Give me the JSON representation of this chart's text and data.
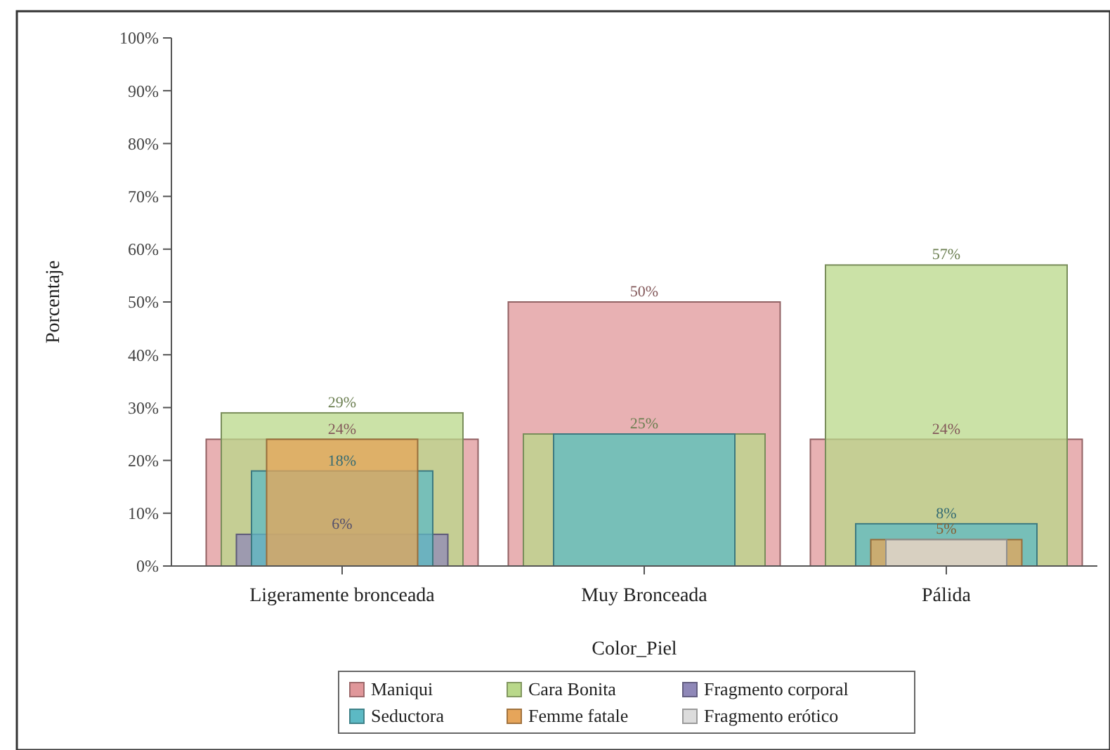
{
  "chart_data": {
    "type": "bar",
    "xlabel": "Color_Piel",
    "ylabel": "Porcentaje",
    "categories": [
      "Ligeramente bronceada",
      "Muy Bronceada",
      "Pálida"
    ],
    "series": [
      {
        "name": "Maniqui",
        "color": "#e0979a",
        "values": [
          24,
          50,
          24
        ],
        "value_labels": [
          "24%",
          "50%",
          "24%"
        ]
      },
      {
        "name": "Cara Bonita",
        "color": "#b9d88a",
        "values": [
          29,
          25,
          57
        ],
        "value_labels": [
          "29%",
          "25%",
          "57%"
        ]
      },
      {
        "name": "Fragmento corporal",
        "color": "#8f88b8",
        "values": [
          6,
          null,
          null
        ],
        "value_labels": [
          "6%",
          null,
          null
        ]
      },
      {
        "name": "Seductora",
        "color": "#5cb9c4",
        "values": [
          18,
          25,
          8
        ],
        "value_labels": [
          "18%",
          null,
          "8%"
        ]
      },
      {
        "name": "Femme fatale",
        "color": "#e6a55a",
        "values": [
          24,
          null,
          5
        ],
        "value_labels": [
          null,
          null,
          "5%"
        ]
      },
      {
        "name": "Fragmento erótico",
        "color": "#dcdcdc",
        "values": [
          null,
          null,
          5
        ]
      }
    ],
    "ylim": [
      0,
      100
    ],
    "yticks": [
      {
        "value": 0,
        "label": "0%"
      },
      {
        "value": 10,
        "label": "10%"
      },
      {
        "value": 20,
        "label": "20%"
      },
      {
        "value": 30,
        "label": "30%"
      },
      {
        "value": 40,
        "label": "40%"
      },
      {
        "value": 50,
        "label": "50%"
      },
      {
        "value": 60,
        "label": "60%"
      },
      {
        "value": 70,
        "label": "70%"
      },
      {
        "value": 80,
        "label": "80%"
      },
      {
        "value": 90,
        "label": "90%"
      },
      {
        "value": 100,
        "label": "100%"
      }
    ],
    "legend": "bottom"
  }
}
